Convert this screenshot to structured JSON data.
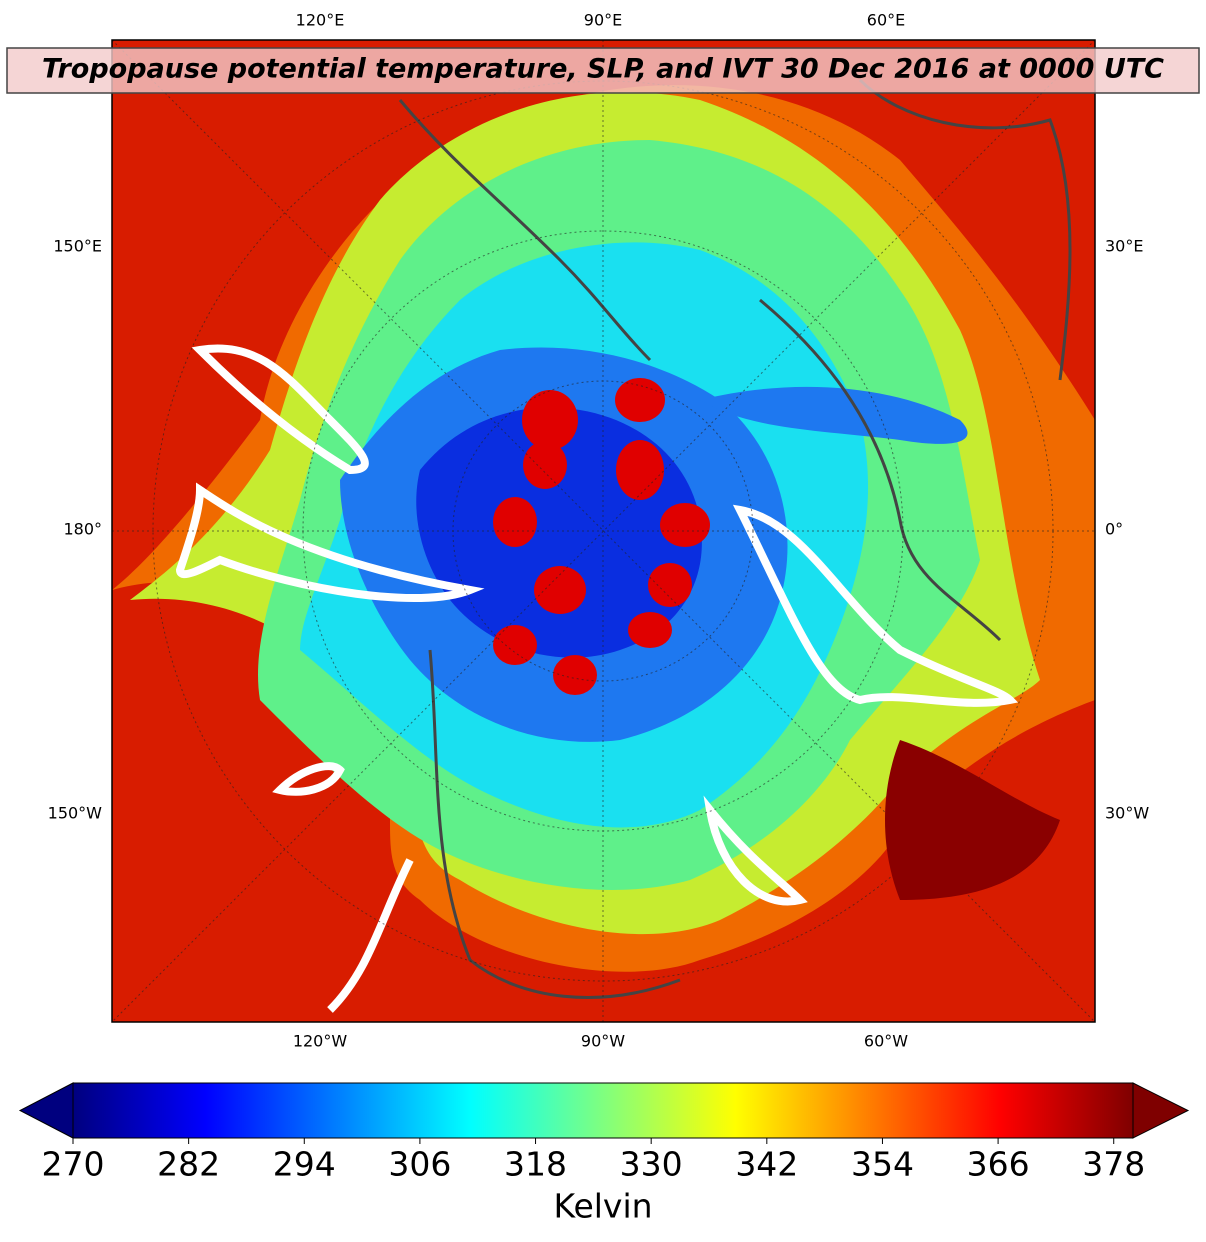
{
  "header": {
    "title": "Tropopause potential temperature, SLP, and IVT 30 Dec 2016 at 0000 UTC"
  },
  "map": {
    "top_labels": [
      "120°E",
      "90°E",
      "60°E"
    ],
    "left_labels": [
      "150°E",
      "180°",
      "150°W"
    ],
    "right_labels": [
      "30°E",
      "0°",
      "30°W"
    ],
    "bottom_labels": [
      "120°W",
      "90°W",
      "60°W"
    ]
  },
  "colorbar": {
    "label": "Kelvin",
    "lim": [
      270,
      380
    ],
    "ticks": [
      270,
      282,
      294,
      306,
      318,
      330,
      342,
      354,
      366,
      378
    ],
    "extend": "both",
    "colors": [
      "#00007f",
      "#0000ff",
      "#007fff",
      "#00ffff",
      "#7fff7f",
      "#ffff00",
      "#ff7f00",
      "#ff0000",
      "#7f0000"
    ]
  }
}
